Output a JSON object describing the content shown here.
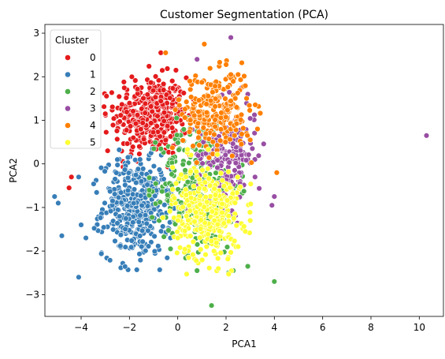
{
  "chart_data": {
    "type": "scatter",
    "title": "Customer Segmentation (PCA)",
    "xlabel": "PCA1",
    "ylabel": "PCA2",
    "xlim": [
      -5.5,
      11.0
    ],
    "ylim": [
      -3.5,
      3.2
    ],
    "xticks": [
      -4,
      -2,
      0,
      2,
      4,
      6,
      8,
      10
    ],
    "yticks": [
      -3,
      -2,
      -1,
      0,
      1,
      2,
      3
    ],
    "grid": false,
    "legend": {
      "title": "Cluster",
      "placement": "top-left"
    },
    "series": [
      {
        "name": "0",
        "color": "#e41a1c",
        "center": [
          -1.1,
          1.1
        ],
        "spread": [
          0.75,
          0.45
        ],
        "count": 420,
        "points": [
          [
            -4.4,
            -0.3
          ],
          [
            -4.5,
            -0.55
          ],
          [
            -0.7,
            2.55
          ],
          [
            -3.0,
            1.15
          ],
          [
            -2.9,
            0.3
          ],
          [
            -0.2,
            0.25
          ],
          [
            -1.9,
            2.0
          ]
        ]
      },
      {
        "name": "1",
        "color": "#377eb8",
        "center": [
          -1.7,
          -1.0
        ],
        "spread": [
          0.7,
          0.55
        ],
        "count": 420,
        "points": [
          [
            -5.1,
            -0.75
          ],
          [
            -4.95,
            -0.9
          ],
          [
            -4.8,
            -1.65
          ],
          [
            -4.1,
            -0.3
          ],
          [
            -4.0,
            -1.4
          ],
          [
            -3.8,
            -1.7
          ],
          [
            -4.1,
            -2.6
          ],
          [
            -1.5,
            -1.9
          ],
          [
            -2.7,
            -0.85
          ],
          [
            -0.3,
            -1.7
          ],
          [
            -2.5,
            0.1
          ]
        ]
      },
      {
        "name": "2",
        "color": "#4daf4a",
        "center": [
          0.9,
          -0.5
        ],
        "spread": [
          0.8,
          0.75
        ],
        "count": 330,
        "points": [
          [
            1.4,
            -3.25
          ],
          [
            4.0,
            -2.7
          ],
          [
            2.1,
            -2.5
          ],
          [
            2.3,
            -2.45
          ],
          [
            2.9,
            -2.35
          ],
          [
            0.8,
            -2.45
          ],
          [
            -0.3,
            -1.95
          ],
          [
            1.0,
            -2.2
          ]
        ]
      },
      {
        "name": "3",
        "color": "#984ea3",
        "center": [
          2.0,
          0.2
        ],
        "spread": [
          0.6,
          0.6
        ],
        "count": 200,
        "points": [
          [
            10.3,
            0.65
          ],
          [
            2.2,
            2.9
          ],
          [
            0.8,
            2.4
          ],
          [
            3.9,
            -0.95
          ],
          [
            4.0,
            -0.75
          ],
          [
            3.2,
            -0.3
          ],
          [
            2.9,
            1.6
          ]
        ]
      },
      {
        "name": "4",
        "color": "#ff7f00",
        "center": [
          1.6,
          1.2
        ],
        "spread": [
          0.7,
          0.45
        ],
        "count": 260,
        "points": [
          [
            1.1,
            2.75
          ],
          [
            -0.5,
            2.55
          ],
          [
            4.1,
            -0.2
          ],
          [
            2.2,
            2.05
          ],
          [
            2.5,
            2.05
          ],
          [
            0.5,
            1.9
          ],
          [
            3.0,
            0.55
          ],
          [
            3.3,
            0.8
          ]
        ]
      },
      {
        "name": "5",
        "color": "#ffff33",
        "center": [
          1.2,
          -1.1
        ],
        "spread": [
          0.7,
          0.55
        ],
        "count": 330,
        "points": [
          [
            3.0,
            -1.3
          ],
          [
            2.8,
            -1.55
          ],
          [
            0.0,
            -1.7
          ],
          [
            1.5,
            -2.0
          ],
          [
            2.5,
            -1.9
          ]
        ]
      }
    ]
  }
}
